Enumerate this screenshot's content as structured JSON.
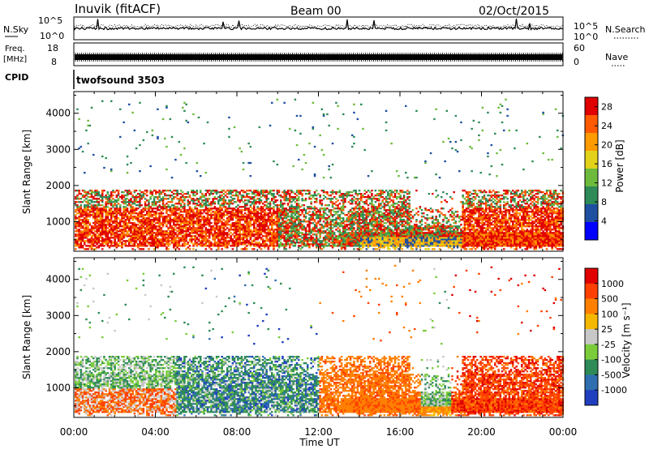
{
  "header": {
    "station": "Inuvik (fitACF)",
    "beam": "Beam 00",
    "date": "02/Oct/2015"
  },
  "sky_panel": {
    "left_label": "N.Sky",
    "right_label": "N.Search",
    "left_ticks": [
      "10^5",
      "10^0"
    ],
    "right_ticks": [
      "10^5",
      "10^0"
    ]
  },
  "freq_panel": {
    "left_label_line1": "Freq.",
    "left_label_line2": "[MHz]",
    "right_label": "Nave",
    "left_ticks": [
      "18",
      "8"
    ],
    "right_ticks": [
      "60",
      "0"
    ]
  },
  "cpid_panel": {
    "label": "CPID",
    "text": "twofsound 3503"
  },
  "colors": {
    "power": [
      "#0000ff",
      "#1f4fa0",
      "#2e8b57",
      "#6dbb3c",
      "#e3d21a",
      "#ff9a00",
      "#ff5a00",
      "#e00000"
    ],
    "velocity": [
      "#1f3fbf",
      "#2f6fb0",
      "#2e8b57",
      "#7acc3a",
      "#c8c8c8",
      "#f5b800",
      "#ff8000",
      "#ff4000",
      "#e00000"
    ]
  },
  "chart_data": [
    {
      "type": "heatmap",
      "panel": "power",
      "ylabel": "Slant Range [km]",
      "yticks": [
        1000,
        2000,
        3000,
        4000
      ],
      "ylim": [
        180,
        4600
      ],
      "xlim": [
        0,
        24
      ],
      "colorbar_label": "Power [dB]",
      "colorbar_ticks": [
        "4",
        "8",
        "12",
        "16",
        "20",
        "24",
        "28"
      ],
      "colorbar_range": [
        0,
        30
      ]
    },
    {
      "type": "heatmap",
      "panel": "velocity",
      "ylabel": "Slant Range [km]",
      "yticks": [
        1000,
        2000,
        3000,
        4000
      ],
      "ylim": [
        180,
        4600
      ],
      "xlim": [
        0,
        24
      ],
      "xlabel": "Time UT",
      "xticks": [
        "00:00",
        "04:00",
        "08:00",
        "12:00",
        "16:00",
        "20:00",
        "00:00"
      ],
      "colorbar_label": "Velocity [m s⁻¹]",
      "colorbar_ticks": [
        "1000",
        "500",
        "100",
        "25",
        "-25",
        "-100",
        "-500",
        "-1000"
      ]
    }
  ]
}
